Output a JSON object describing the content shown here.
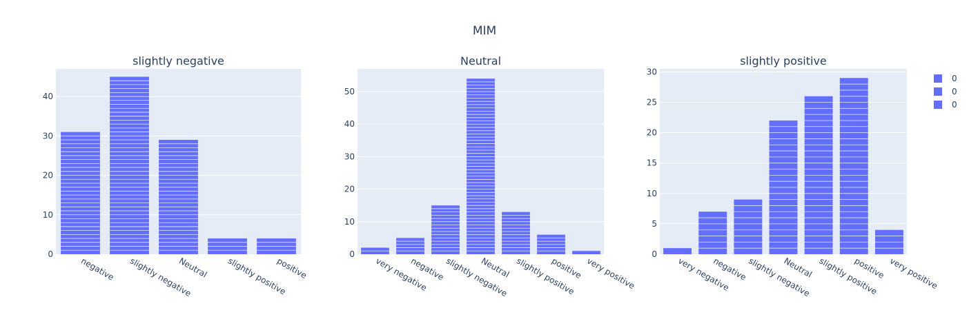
{
  "title": "MIM",
  "colors": {
    "bar": "#636efa",
    "plot_bg": "#e5ecf6",
    "grid": "#ffffff",
    "text": "#2a3f5f"
  },
  "legend": {
    "placement": "top-right",
    "items": [
      "0",
      "0",
      "0"
    ]
  },
  "chart_data": [
    {
      "type": "bar",
      "title": "slightly negative",
      "categories": [
        "negative",
        "slightly negative",
        "Neutral",
        "slightly positive",
        "positive"
      ],
      "values": [
        31,
        45,
        29,
        4,
        4
      ],
      "ylim": [
        0,
        47
      ],
      "yticks": [
        0,
        10,
        20,
        30,
        40
      ],
      "grid": true,
      "bar_style": "stacked unit segments"
    },
    {
      "type": "bar",
      "title": "Neutral",
      "categories": [
        "very negative",
        "negative",
        "slightly negative",
        "Neutral",
        "slightly positive",
        "positive",
        "very positive"
      ],
      "values": [
        2,
        5,
        15,
        54,
        13,
        6,
        1
      ],
      "ylim": [
        0,
        57
      ],
      "yticks": [
        0,
        10,
        20,
        30,
        40,
        50
      ],
      "grid": true,
      "bar_style": "stacked unit segments"
    },
    {
      "type": "bar",
      "title": "slightly positive",
      "categories": [
        "very negative",
        "negative",
        "slightly negative",
        "Neutral",
        "slightly positive",
        "positive",
        "very positive"
      ],
      "values": [
        1,
        7,
        9,
        22,
        26,
        29,
        4
      ],
      "ylim": [
        0,
        30.5
      ],
      "yticks": [
        0,
        5,
        10,
        15,
        20,
        25,
        30
      ],
      "grid": true,
      "bar_style": "stacked unit segments"
    }
  ]
}
